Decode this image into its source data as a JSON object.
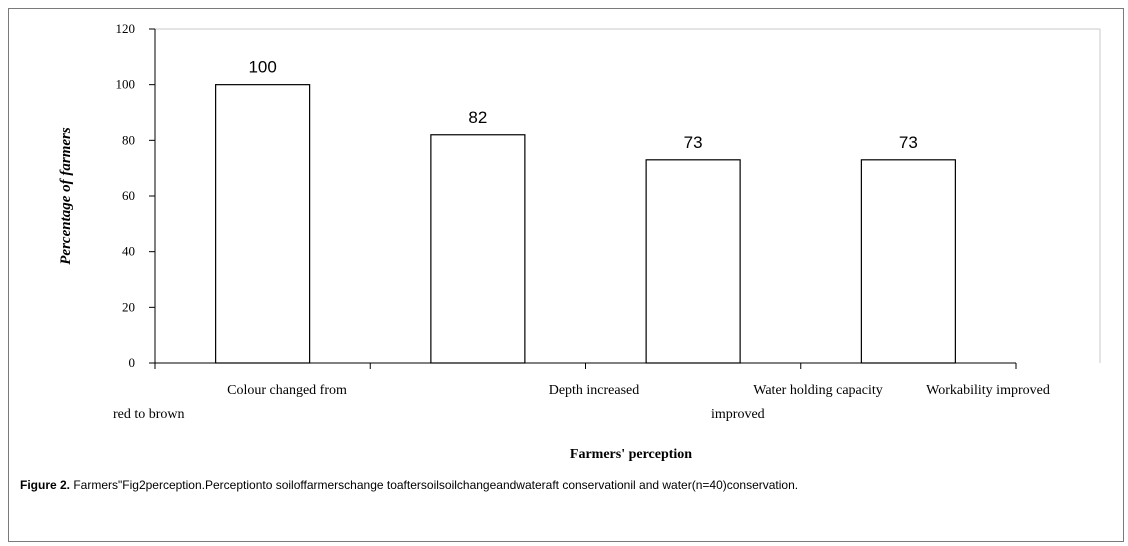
{
  "chart_data": {
    "type": "bar",
    "categories": [
      "Colour changed from red to brown",
      "Depth increased",
      "Water holding capacity improved",
      "Workability improved"
    ],
    "values": [
      100,
      82,
      73,
      73
    ],
    "data_labels": [
      "100",
      "82",
      "73",
      "73"
    ],
    "category_label_lines": [
      [
        "Colour changed from",
        "red to brown"
      ],
      [
        "Depth increased"
      ],
      [
        "Water holding capacity",
        "improved"
      ],
      [
        "Workability improved"
      ]
    ],
    "ylabel": "Percentage of farmers",
    "xlabel": "Farmers' perception",
    "ylim": [
      0,
      120
    ],
    "yticks": [
      0,
      20,
      40,
      60,
      80,
      100,
      120
    ],
    "grid": false,
    "legend": "none"
  },
  "caption": {
    "label": "Figure 2.",
    "text": " Farmers\"Fig2perception.Perceptionto soiloffarmerschange toaftersoilsoilchangeandwateraft conservationil and water(n=40)conservation."
  }
}
